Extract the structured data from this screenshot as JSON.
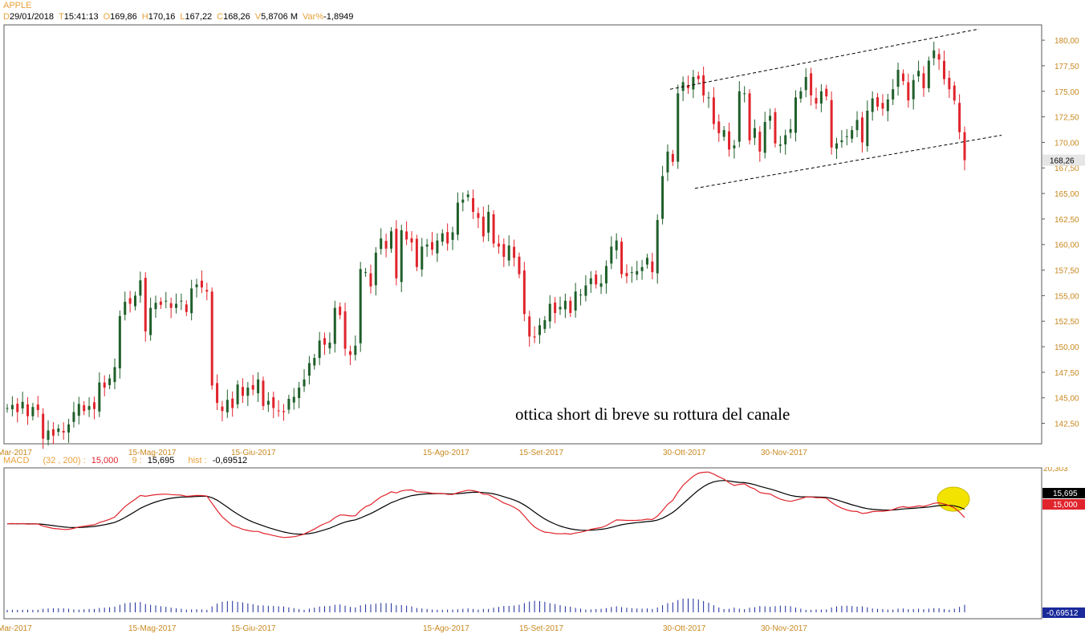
{
  "header": {
    "symbol": "APPLE",
    "fields": [
      {
        "key": "D",
        "value": "29/01/2018"
      },
      {
        "key": "T",
        "value": "15:41:13"
      },
      {
        "key": "O",
        "value": "169,86"
      },
      {
        "key": "H",
        "value": "170,16"
      },
      {
        "key": "L",
        "value": "167,22"
      },
      {
        "key": "C",
        "value": "168,26"
      },
      {
        "key": "V",
        "value": "5,8706 M"
      },
      {
        "key": "Var%",
        "value": "-1,8949"
      }
    ]
  },
  "macd_header": {
    "label": "MACD",
    "params": "(32 , 200) :",
    "macd_value": "15,000",
    "signal_period": "9 :",
    "signal_value": "15,695",
    "hist_label": "hist :",
    "hist_value": "-0,69512"
  },
  "annotation": "ottica short di breve su rottura del canale",
  "colors": {
    "up": "#1f5f2a",
    "down": "#e0242c",
    "macd": "#e0242c",
    "signal": "#000000",
    "hist": "#1a2a9a",
    "axis_label": "#c8881e",
    "highlight": "#f2e400"
  },
  "chart_data": [
    {
      "type": "candlestick",
      "y_ticks": [
        "142,50",
        "145,00",
        "147,50",
        "150,00",
        "152,50",
        "155,00",
        "157,50",
        "160,00",
        "162,50",
        "165,00",
        "167,50",
        "170,00",
        "172,50",
        "175,00",
        "177,50",
        "180,00"
      ],
      "ylim": [
        140.5,
        181.5
      ],
      "x_ticks": [
        "Mar-2017",
        "15-Mag-2017",
        "15-Giu-2017",
        "15-Ago-2017",
        "15-Set-2017",
        "30-Ott-2017",
        "30-Nov-2017"
      ],
      "last_price_label": "168,26",
      "last_price": 168.26,
      "channel_lines": [
        {
          "name": "upper",
          "from": [
            0.692,
            175.2
          ],
          "to": [
            1.0,
            181.1
          ]
        },
        {
          "name": "lower",
          "from": [
            0.722,
            165.5
          ],
          "to": [
            1.0,
            170.7
          ]
        }
      ],
      "closes": [
        144.0,
        144.3,
        143.6,
        144.6,
        143.2,
        144.1,
        143.8,
        141.0,
        141.8,
        141.3,
        142.0,
        141.6,
        142.4,
        143.6,
        144.4,
        143.7,
        144.2,
        143.9,
        146.5,
        146.0,
        146.9,
        148.0,
        153.0,
        154.4,
        154.2,
        155.0,
        156.5,
        151.5,
        153.8,
        154.3,
        154.1,
        154.5,
        153.8,
        154.2,
        154.5,
        153.4,
        155.7,
        156.1,
        155.8,
        155.4,
        146.2,
        144.5,
        143.7,
        144.8,
        144.0,
        146.3,
        145.2,
        146.0,
        145.8,
        146.8,
        144.2,
        144.7,
        144.0,
        143.7,
        143.6,
        144.9,
        145.1,
        146.0,
        146.8,
        148.4,
        148.9,
        150.6,
        150.2,
        150.4,
        153.8,
        153.1,
        149.8,
        149.2,
        150.1,
        157.6,
        157.3,
        155.9,
        159.2,
        160.6,
        159.6,
        161.3,
        156.7,
        161.4,
        160.5,
        160.2,
        157.8,
        159.8,
        160.0,
        159.5,
        160.4,
        161.1,
        160.1,
        161.2,
        164.1,
        164.4,
        164.9,
        163.2,
        162.6,
        160.8,
        163.2,
        160.1,
        159.8,
        158.8,
        159.9,
        158.7,
        157.1,
        153.2,
        151.0,
        150.9,
        152.1,
        152.6,
        154.2,
        153.3,
        153.9,
        154.5,
        153.3,
        155.4,
        155.1,
        156.0,
        156.7,
        156.1,
        156.2,
        157.9,
        159.8,
        160.4,
        157.1,
        156.9,
        157.3,
        157.4,
        157.8,
        158.7,
        157.3,
        162.4,
        166.7,
        169.1,
        168.1,
        174.8,
        175.9,
        175.3,
        176.4,
        176.2,
        174.6,
        174.4,
        171.8,
        170.9,
        171.2,
        169.3,
        169.7,
        175.0,
        174.8,
        170.2,
        171.4,
        169.1,
        172.0,
        172.6,
        169.9,
        169.8,
        170.7,
        171.3,
        174.4,
        175.0,
        176.4,
        174.6,
        173.8,
        175.0,
        174.5,
        169.5,
        169.9,
        170.2,
        170.6,
        171.2,
        172.2,
        170.0,
        173.1,
        174.3,
        173.5,
        173.3,
        174.2,
        175.2,
        177.1,
        176.0,
        174.1,
        176.1,
        177.0,
        175.3,
        178.0,
        179.0,
        178.1,
        176.2,
        175.2,
        174.1,
        171.0,
        168.26
      ],
      "panels": [
        {
          "name": "MACD",
          "range": [
            -8.5,
            20.303
          ],
          "right_labels": [
            "20,303",
            "15,695",
            "15,000",
            "-0,69512"
          ]
        }
      ]
    }
  ],
  "macd_right_label": "20,303",
  "signal_box": "15,695",
  "macd_box": "15,000",
  "hist_box": "-0,69512"
}
